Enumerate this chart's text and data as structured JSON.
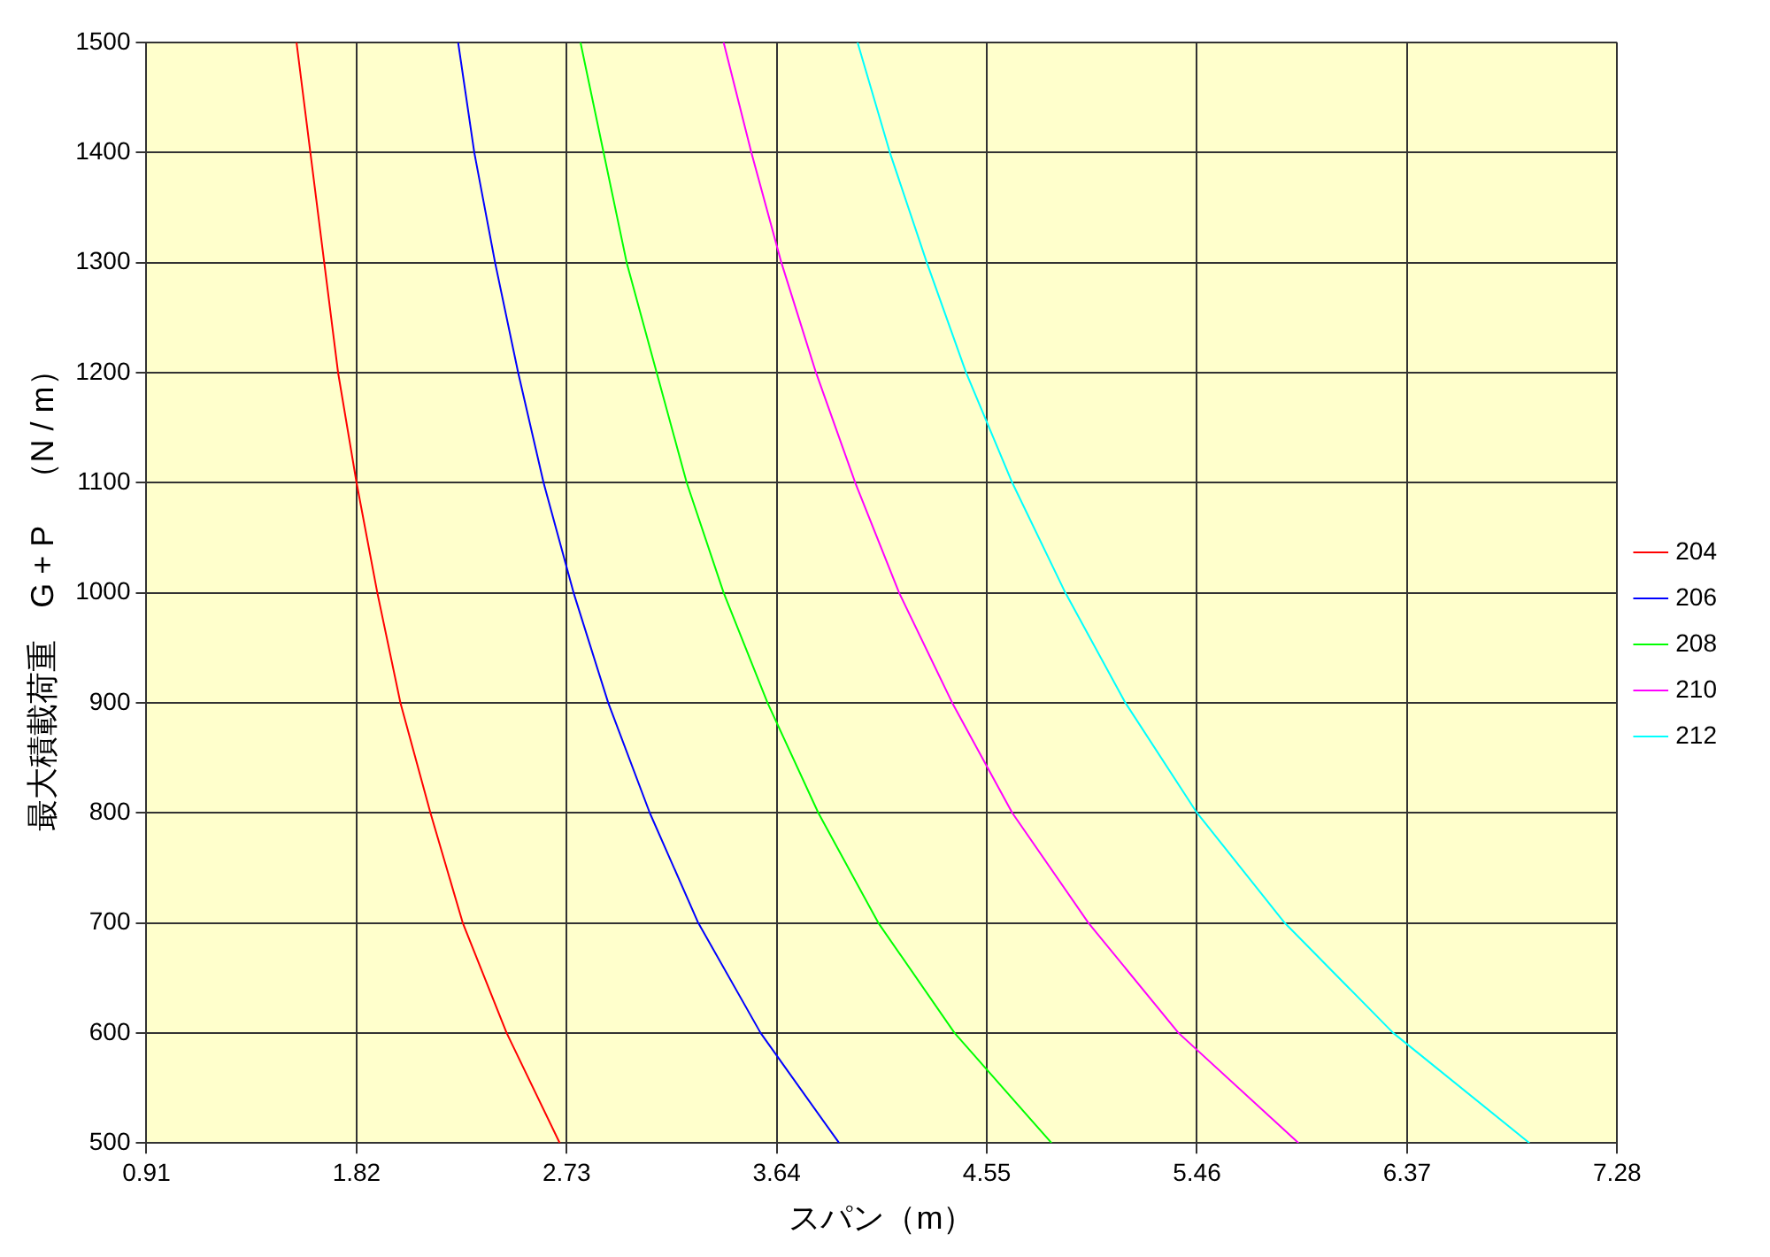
{
  "chart_data": {
    "type": "line",
    "xlabel": "スパン（m）",
    "ylabel": "最大積載荷重　G + P　（N / m）",
    "xlim": [
      0.91,
      7.28
    ],
    "xticks": [
      0.91,
      1.82,
      2.73,
      3.64,
      4.55,
      5.46,
      6.37,
      7.28
    ],
    "ylim": [
      500,
      1500
    ],
    "yticks": [
      500,
      600,
      700,
      800,
      900,
      1000,
      1100,
      1200,
      1300,
      1400,
      1500
    ],
    "grid": true,
    "legend": "right",
    "marker": "none",
    "line_style": "solid",
    "series": [
      {
        "name": "204",
        "color": "#ff0000",
        "x": [
          1.56,
          1.62,
          1.68,
          1.74,
          1.82,
          1.91,
          2.01,
          2.14,
          2.28,
          2.47,
          2.7
        ],
        "values": [
          1500,
          1400,
          1300,
          1200,
          1100,
          1000,
          900,
          800,
          700,
          600,
          500
        ]
      },
      {
        "name": "206",
        "color": "#0000ff",
        "x": [
          2.26,
          2.33,
          2.42,
          2.52,
          2.63,
          2.76,
          2.91,
          3.09,
          3.3,
          3.57,
          3.91
        ],
        "values": [
          1500,
          1400,
          1300,
          1200,
          1100,
          1000,
          900,
          800,
          700,
          600,
          500
        ]
      },
      {
        "name": "208",
        "color": "#00ff00",
        "x": [
          2.79,
          2.89,
          2.99,
          3.12,
          3.25,
          3.41,
          3.6,
          3.82,
          4.08,
          4.41,
          4.83
        ],
        "values": [
          1500,
          1400,
          1300,
          1200,
          1100,
          1000,
          900,
          800,
          700,
          600,
          500
        ]
      },
      {
        "name": "210",
        "color": "#ff00ff",
        "x": [
          3.41,
          3.53,
          3.66,
          3.81,
          3.98,
          4.17,
          4.4,
          4.66,
          4.99,
          5.38,
          5.9
        ],
        "values": [
          1500,
          1400,
          1300,
          1200,
          1100,
          1000,
          900,
          800,
          700,
          600,
          500
        ]
      },
      {
        "name": "212",
        "color": "#00ffff",
        "x": [
          3.99,
          4.13,
          4.29,
          4.46,
          4.66,
          4.89,
          5.15,
          5.46,
          5.84,
          6.31,
          6.9
        ],
        "values": [
          1500,
          1400,
          1300,
          1200,
          1100,
          1000,
          900,
          800,
          700,
          600,
          500
        ]
      }
    ]
  }
}
